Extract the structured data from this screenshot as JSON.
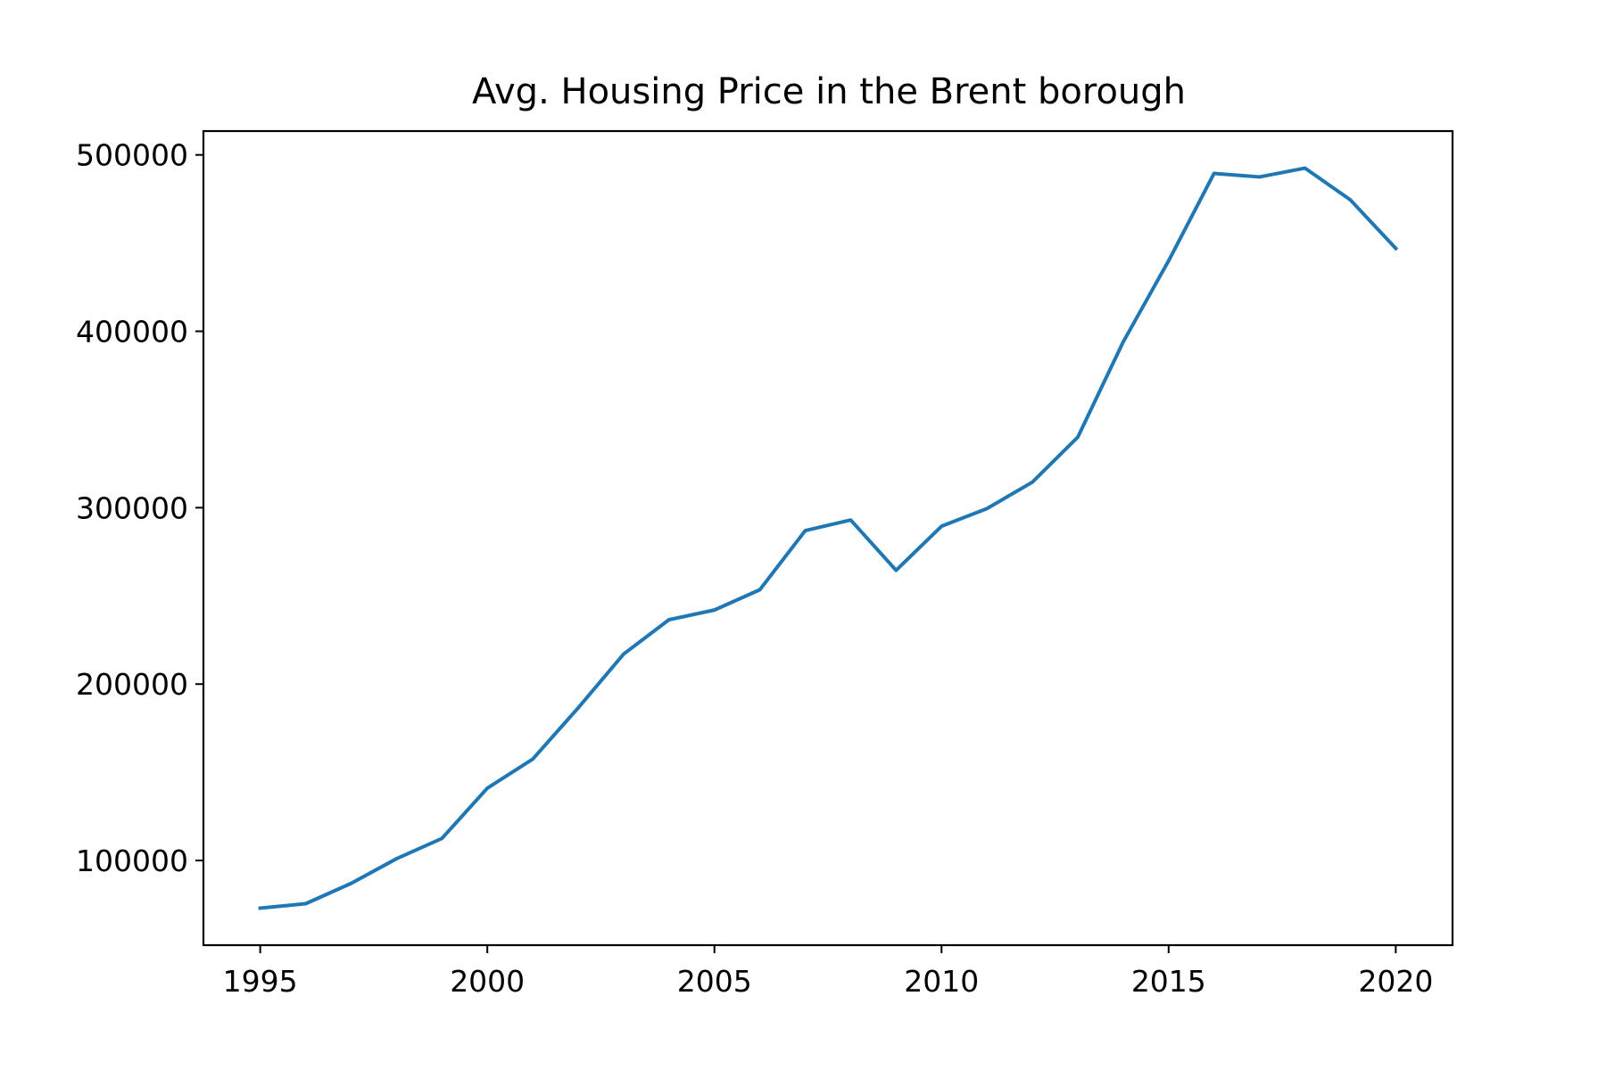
{
  "chart_data": {
    "type": "line",
    "title": "Avg. Housing Price in the Brent borough",
    "xlabel": "",
    "ylabel": "",
    "xlim": [
      1993.75,
      2021.25
    ],
    "ylim": [
      52000,
      513500
    ],
    "x_ticks": [
      1995,
      2000,
      2005,
      2010,
      2015,
      2020
    ],
    "x_tick_labels": [
      "1995",
      "2000",
      "2005",
      "2010",
      "2015",
      "2020"
    ],
    "y_ticks": [
      100000,
      200000,
      300000,
      400000,
      500000
    ],
    "y_tick_labels": [
      "100000",
      "200000",
      "300000",
      "400000",
      "500000"
    ],
    "grid": false,
    "legend": "none",
    "series": [
      {
        "color": "#1f77b4",
        "x": [
          1995,
          1996,
          1997,
          1998,
          1999,
          2000,
          2001,
          2002,
          2003,
          2004,
          2005,
          2006,
          2007,
          2008,
          2009,
          2010,
          2011,
          2012,
          2013,
          2014,
          2015,
          2016,
          2017,
          2018,
          2019,
          2020
        ],
        "y": [
          73000,
          75500,
          87000,
          101000,
          112500,
          141000,
          157500,
          186500,
          217000,
          236500,
          242000,
          253500,
          287000,
          293000,
          264500,
          289500,
          299500,
          314500,
          340000,
          394000,
          440000,
          489500,
          487500,
          492500,
          474500,
          447000
        ]
      }
    ]
  }
}
